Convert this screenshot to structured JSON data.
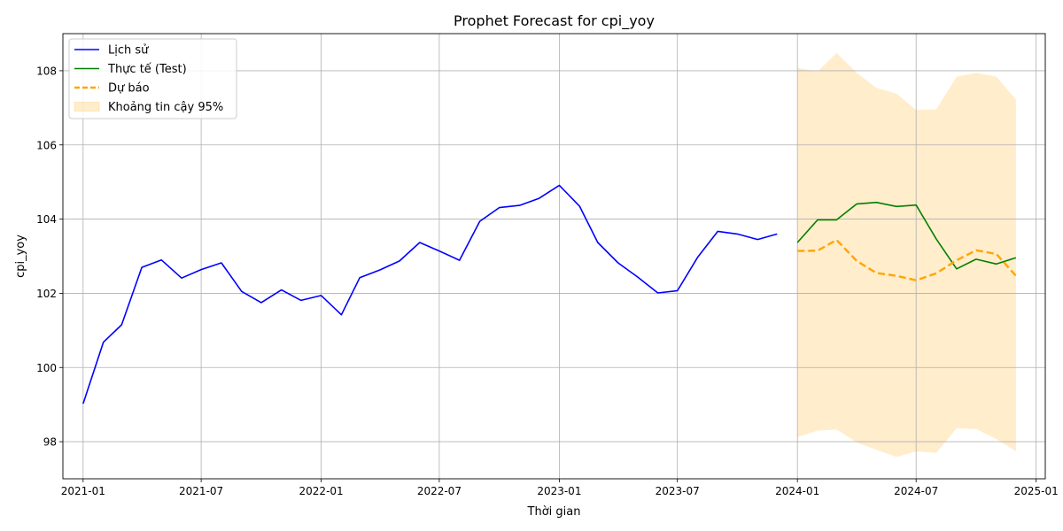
{
  "chart_data": {
    "type": "line",
    "title": "Prophet Forecast for cpi_yoy",
    "xlabel": "Thời gian",
    "ylabel": "cpi_yoy",
    "xlim": [
      "2020-12-01",
      "2025-01-15"
    ],
    "ylim": [
      97.0,
      109.0
    ],
    "x_ticks": [
      "2021-01",
      "2021-07",
      "2022-01",
      "2022-07",
      "2023-01",
      "2023-07",
      "2024-01",
      "2024-07",
      "2025-01"
    ],
    "y_ticks": [
      98,
      100,
      102,
      104,
      106,
      108
    ],
    "grid": true,
    "legend_position": "top-left",
    "colors": {
      "history": "#0000ff",
      "test": "#008000",
      "forecast": "#ffa500",
      "interval": "#ffa500"
    },
    "legend": [
      {
        "key": "history",
        "label": "Lịch sử"
      },
      {
        "key": "test",
        "label": "Thực tế (Test)"
      },
      {
        "key": "forecast",
        "label": "Dự báo"
      },
      {
        "key": "interval",
        "label": "Khoảng tin cậy 95%"
      }
    ],
    "history": {
      "x": [
        "2021-01-01",
        "2021-02-01",
        "2021-03-01",
        "2021-04-01",
        "2021-05-01",
        "2021-06-01",
        "2021-07-01",
        "2021-08-01",
        "2021-09-01",
        "2021-10-01",
        "2021-11-01",
        "2021-12-01",
        "2022-01-01",
        "2022-02-01",
        "2022-03-01",
        "2022-04-01",
        "2022-05-01",
        "2022-06-01",
        "2022-07-01",
        "2022-08-01",
        "2022-09-01",
        "2022-10-01",
        "2022-11-01",
        "2022-12-01",
        "2023-01-01",
        "2023-02-01",
        "2023-03-01",
        "2023-04-01",
        "2023-05-01",
        "2023-06-01",
        "2023-07-01",
        "2023-08-01",
        "2023-09-01",
        "2023-10-01",
        "2023-11-01",
        "2023-12-01"
      ],
      "y": [
        99.02,
        100.68,
        101.15,
        102.7,
        102.9,
        102.41,
        102.64,
        102.82,
        102.05,
        101.75,
        102.09,
        101.81,
        101.94,
        101.42,
        102.42,
        102.63,
        102.87,
        103.37,
        103.14,
        102.89,
        103.94,
        104.31,
        104.37,
        104.56,
        104.91,
        104.35,
        103.37,
        102.82,
        102.44,
        102.01,
        102.07,
        102.97,
        103.67,
        103.6,
        103.45,
        103.6
      ]
    },
    "test": {
      "x": [
        "2024-01-01",
        "2024-02-01",
        "2024-03-01",
        "2024-04-01",
        "2024-05-01",
        "2024-06-01",
        "2024-07-01",
        "2024-08-01",
        "2024-09-01",
        "2024-10-01",
        "2024-11-01",
        "2024-12-01"
      ],
      "y": [
        103.37,
        103.98,
        103.98,
        104.41,
        104.45,
        104.34,
        104.38,
        103.46,
        102.66,
        102.92,
        102.79,
        102.96
      ]
    },
    "forecast": {
      "x": [
        "2024-01-01",
        "2024-02-01",
        "2024-03-01",
        "2024-04-01",
        "2024-05-01",
        "2024-06-01",
        "2024-07-01",
        "2024-08-01",
        "2024-09-01",
        "2024-10-01",
        "2024-11-01",
        "2024-12-01"
      ],
      "y": [
        103.14,
        103.15,
        103.44,
        102.87,
        102.55,
        102.47,
        102.35,
        102.54,
        102.89,
        103.16,
        103.06,
        102.47
      ]
    },
    "interval": {
      "x": [
        "2024-01-01",
        "2024-02-01",
        "2024-03-01",
        "2024-04-01",
        "2024-05-01",
        "2024-06-01",
        "2024-07-01",
        "2024-08-01",
        "2024-09-01",
        "2024-10-01",
        "2024-11-01",
        "2024-12-01"
      ],
      "upper": [
        108.08,
        107.98,
        108.48,
        107.94,
        107.54,
        107.38,
        106.94,
        106.96,
        107.84,
        107.94,
        107.84,
        107.22
      ],
      "lower": [
        98.12,
        98.3,
        98.33,
        97.98,
        97.78,
        97.59,
        97.74,
        97.7,
        98.36,
        98.34,
        98.07,
        97.74
      ]
    }
  }
}
